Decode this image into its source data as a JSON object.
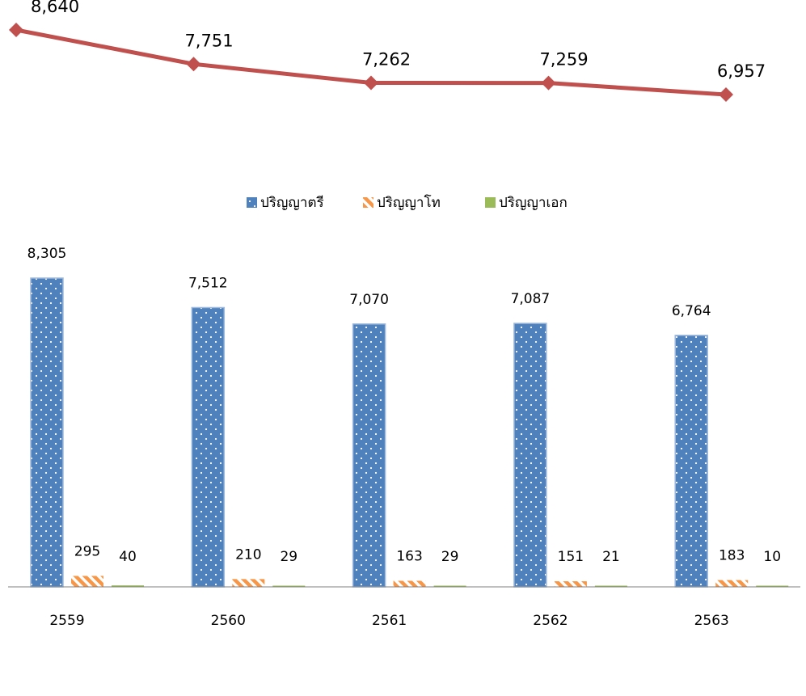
{
  "chart_data": [
    {
      "type": "line",
      "categories": [
        "2559",
        "2560",
        "2561",
        "2562",
        "2563"
      ],
      "series": [
        {
          "values": [
            8640,
            7751,
            7262,
            7259,
            6957
          ],
          "color": "#C0504D",
          "marker": "diamond"
        }
      ],
      "data_labels": [
        "8,640",
        "7,751",
        "7,262",
        "7,259",
        "6,957"
      ]
    },
    {
      "type": "bar",
      "categories": [
        "2559",
        "2560",
        "2561",
        "2562",
        "2563"
      ],
      "series": [
        {
          "name": "ปริญญาตรี",
          "values": [
            8305,
            7512,
            7070,
            7087,
            6764
          ],
          "labels": [
            "8,305",
            "7,512",
            "7,070",
            "7,087",
            "6,764"
          ],
          "color": "#4F81BD",
          "pattern": "dots"
        },
        {
          "name": "ปริญญาโท",
          "values": [
            295,
            210,
            163,
            151,
            183
          ],
          "labels": [
            "295",
            "210",
            "163",
            "151",
            "183"
          ],
          "color": "#F79646",
          "pattern": "stripes"
        },
        {
          "name": "ปริญญาเอก",
          "values": [
            40,
            29,
            29,
            21,
            10
          ],
          "labels": [
            "40",
            "29",
            "29",
            "21",
            "10"
          ],
          "color": "#9BBB59",
          "pattern": "solid"
        }
      ],
      "legend_position": "top",
      "grid": false
    }
  ]
}
